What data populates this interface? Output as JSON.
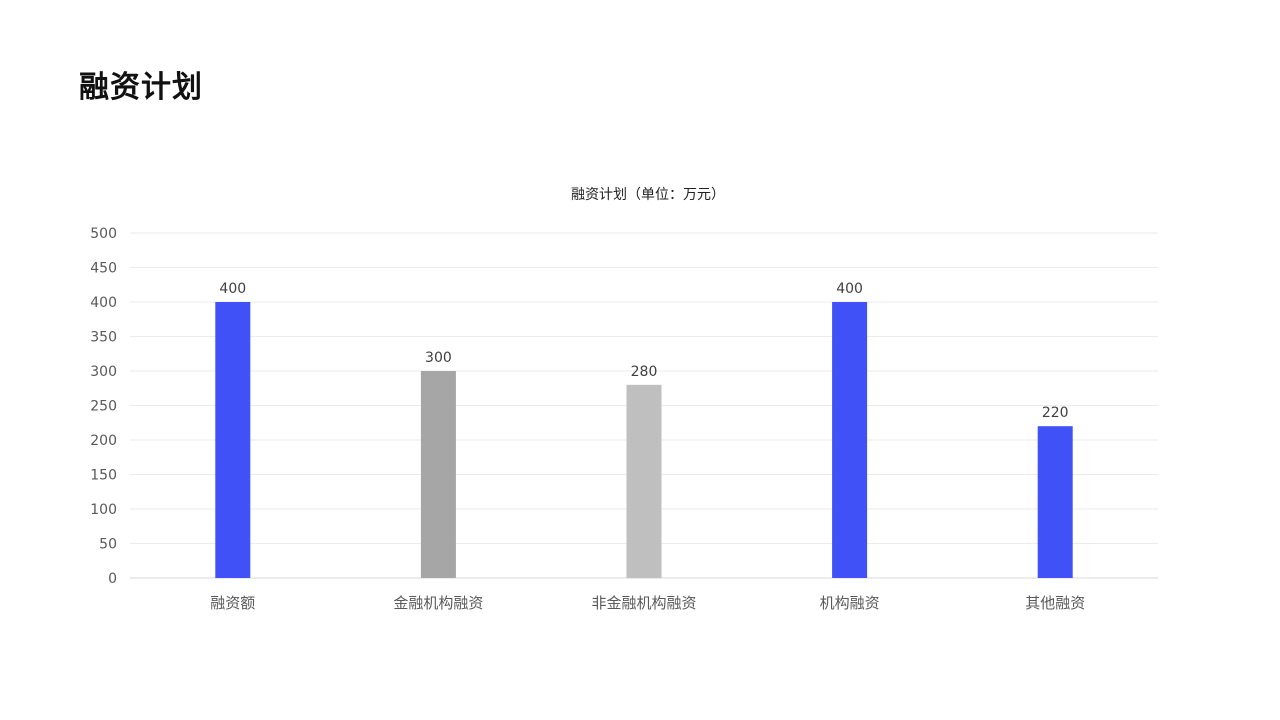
{
  "slide": {
    "title": "融资计划"
  },
  "chart_data": {
    "type": "bar",
    "title": "融资计划（单位：万元）",
    "xlabel": "",
    "ylabel": "",
    "categories": [
      "融资额",
      "金融机构融资",
      "非金融机构融资",
      "机构融资",
      "其他融资"
    ],
    "values": [
      400,
      300,
      280,
      400,
      220
    ],
    "bar_colors": [
      "#3F51F7",
      "#A6A6A6",
      "#BFBFBF",
      "#3F51F7",
      "#3F51F7"
    ],
    "data_labels": [
      "400",
      "300",
      "280",
      "400",
      "220"
    ],
    "ylim": [
      0,
      500
    ],
    "yticks": [
      0,
      50,
      100,
      150,
      200,
      250,
      300,
      350,
      400,
      450,
      500
    ],
    "grid": true,
    "legend": "none"
  }
}
